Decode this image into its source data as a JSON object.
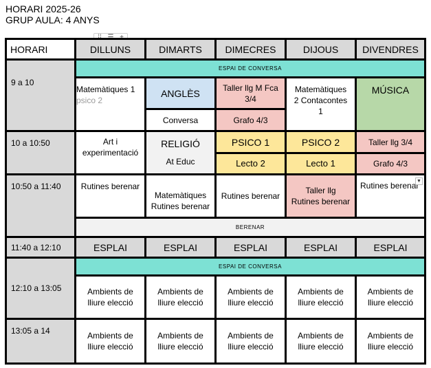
{
  "title": {
    "line1": "HORARI 2025-26",
    "line2": "GRUP AULA: 4 ANYS"
  },
  "toolbar": {
    "drag": "⁞⁞",
    "filter": "☰",
    "add": "+"
  },
  "header": {
    "horari": "HORARI",
    "days": [
      "DILLUNS",
      "DIMARTS",
      "DIMECRES",
      "DIJOUS",
      "DIVENDRES"
    ]
  },
  "times": [
    "9 a 10",
    "10 a 10:50",
    "10:50 a 11:40",
    "11:40 a 12:10",
    "12:10 a 13:05",
    "13:05 a 14"
  ],
  "banners": {
    "conversa": "ESPAI DE CONVERSA",
    "berenar": "BERENAR"
  },
  "row1": {
    "dilluns_a": "Matemàtiques 1",
    "dilluns_b": "psico 2",
    "dimarts_top": "ANGLÈS",
    "dimarts_bottom": "Conversa",
    "dimecres_top": "Taller llg M Fca 3/4",
    "dimecres_bottom": "Grafo 4/3",
    "dijous": "Matemàtiques 2 Contacontes 1",
    "divendres": "MÚSICA"
  },
  "row2": {
    "dilluns": "Art i experimentació",
    "dimarts_top": "RELIGIÓ",
    "dimarts_bottom": "At Educ",
    "dimecres_top": "PSICO 1",
    "dimecres_bottom": "Lecto 2",
    "dijous_top": "PSICO 2",
    "dijous_bottom": "Lecto 1",
    "divendres_top": "Taller llg 3/4",
    "divendres_bottom": "Grafo 4/3"
  },
  "row3": {
    "dilluns": "Rutines berenar",
    "dimarts": "Matemàtiques Rutines berenar",
    "dimecres": "Rutines berenar",
    "dijous": "Taller llg Rutines berenar",
    "divendres": "Rutines berenar",
    "caret": "▼"
  },
  "esplai": "ESPLAI",
  "ambients": "Ambients de lliure elecció"
}
